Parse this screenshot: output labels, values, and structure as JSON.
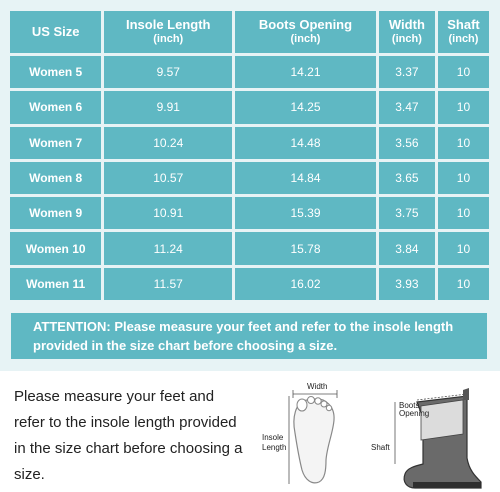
{
  "table": {
    "headers": [
      {
        "label": "US Size",
        "unit": ""
      },
      {
        "label": "Insole Length",
        "unit": "(inch)"
      },
      {
        "label": "Boots Opening",
        "unit": "(inch)"
      },
      {
        "label": "Width",
        "unit": "(inch)"
      },
      {
        "label": "Shaft",
        "unit": "(inch)"
      }
    ],
    "rows": [
      [
        "Women 5",
        "9.57",
        "14.21",
        "3.37",
        "10"
      ],
      [
        "Women 6",
        "9.91",
        "14.25",
        "3.47",
        "10"
      ],
      [
        "Women 7",
        "10.24",
        "14.48",
        "3.56",
        "10"
      ],
      [
        "Women 8",
        "10.57",
        "14.84",
        "3.65",
        "10"
      ],
      [
        "Women 9",
        "10.91",
        "15.39",
        "3.75",
        "10"
      ],
      [
        "Women 10",
        "11.24",
        "15.78",
        "3.84",
        "10"
      ],
      [
        "Women 11",
        "11.57",
        "16.02",
        "3.93",
        "10"
      ]
    ]
  },
  "attention": "ATTENTION: Please measure your feet and refer to the insole length provided in the size chart before choosing a size.",
  "note": "Please measure your feet and refer to the insole length provided in the size chart before choosing a size.",
  "diagram": {
    "width_label": "Width",
    "insole_label_line1": "Insole",
    "insole_label_line2": "Length",
    "boots_label_line1": "Boots",
    "boots_label_line2": "Opening",
    "shaft_label": "Shaft"
  },
  "colors": {
    "accent": "#5fb8c3",
    "panel": "#e7f3f5"
  }
}
